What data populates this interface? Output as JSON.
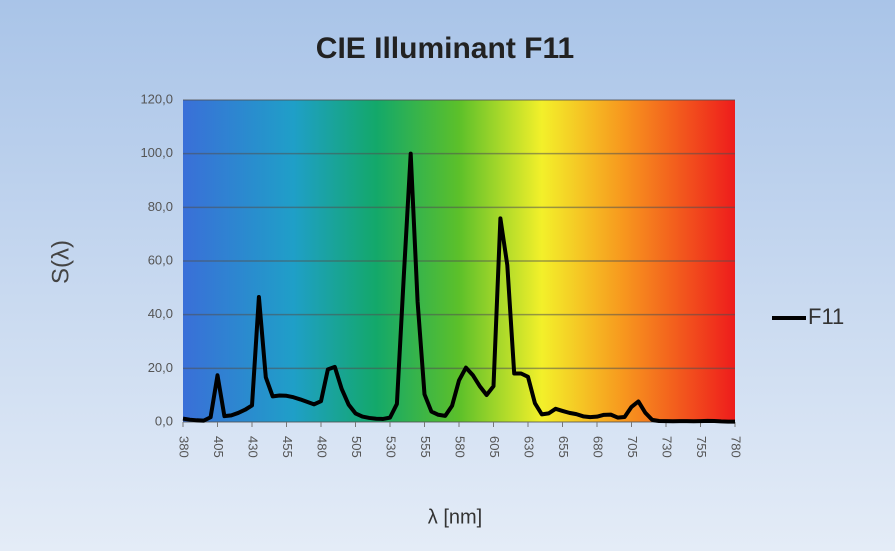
{
  "chart_data": {
    "type": "line",
    "title": "CIE Illuminant F11",
    "ylabel": "S(λ)",
    "xlabel": "λ [nm]",
    "x": [
      380,
      385,
      390,
      395,
      400,
      405,
      410,
      415,
      420,
      425,
      430,
      435,
      440,
      445,
      450,
      455,
      460,
      465,
      470,
      475,
      480,
      485,
      490,
      495,
      500,
      505,
      510,
      515,
      520,
      525,
      530,
      535,
      540,
      545,
      550,
      555,
      560,
      565,
      570,
      575,
      580,
      585,
      590,
      595,
      600,
      605,
      610,
      615,
      620,
      625,
      630,
      635,
      640,
      645,
      650,
      655,
      660,
      665,
      670,
      675,
      680,
      685,
      690,
      695,
      700,
      705,
      710,
      715,
      720,
      725,
      730,
      735,
      740,
      745,
      750,
      755,
      760,
      765,
      770,
      775,
      780
    ],
    "series": [
      {
        "name": "F11",
        "color": "#000000",
        "values": [
          1.25,
          0.86,
          0.63,
          0.51,
          1.77,
          17.41,
          2.18,
          2.46,
          3.38,
          4.57,
          6.16,
          46.6,
          16.65,
          9.54,
          9.87,
          9.77,
          9.23,
          8.42,
          7.5,
          6.58,
          7.77,
          19.62,
          20.54,
          12.31,
          6.48,
          3.2,
          2.02,
          1.51,
          1.22,
          1.14,
          1.62,
          6.73,
          54.35,
          100.0,
          44.77,
          10.32,
          3.89,
          2.69,
          2.29,
          6.08,
          15.49,
          20.26,
          17.48,
          13.37,
          10.06,
          13.34,
          75.88,
          58.46,
          18.09,
          18.07,
          16.83,
          7.02,
          2.84,
          3.21,
          4.92,
          4.13,
          3.4,
          2.94,
          2.11,
          1.83,
          2.0,
          2.66,
          2.75,
          1.65,
          1.85,
          5.63,
          7.66,
          3.45,
          0.78,
          0.37,
          0.32,
          0.29,
          0.33,
          0.33,
          0.27,
          0.33,
          0.44,
          0.36,
          0.22,
          0.16,
          0.12
        ]
      }
    ],
    "xlim": [
      380,
      780
    ],
    "xticks": [
      380,
      405,
      430,
      455,
      480,
      505,
      530,
      555,
      580,
      605,
      630,
      655,
      680,
      705,
      730,
      755,
      780
    ],
    "ylim": [
      0,
      120
    ],
    "yticks": [
      {
        "value": 0,
        "label": "0,0"
      },
      {
        "value": 20,
        "label": "20,0"
      },
      {
        "value": 40,
        "label": "40,0"
      },
      {
        "value": 60,
        "label": "60,0"
      },
      {
        "value": 80,
        "label": "80,0"
      },
      {
        "value": 100,
        "label": "100,0"
      },
      {
        "value": 120,
        "label": "120,0"
      }
    ],
    "grid": true,
    "legend": "right"
  }
}
